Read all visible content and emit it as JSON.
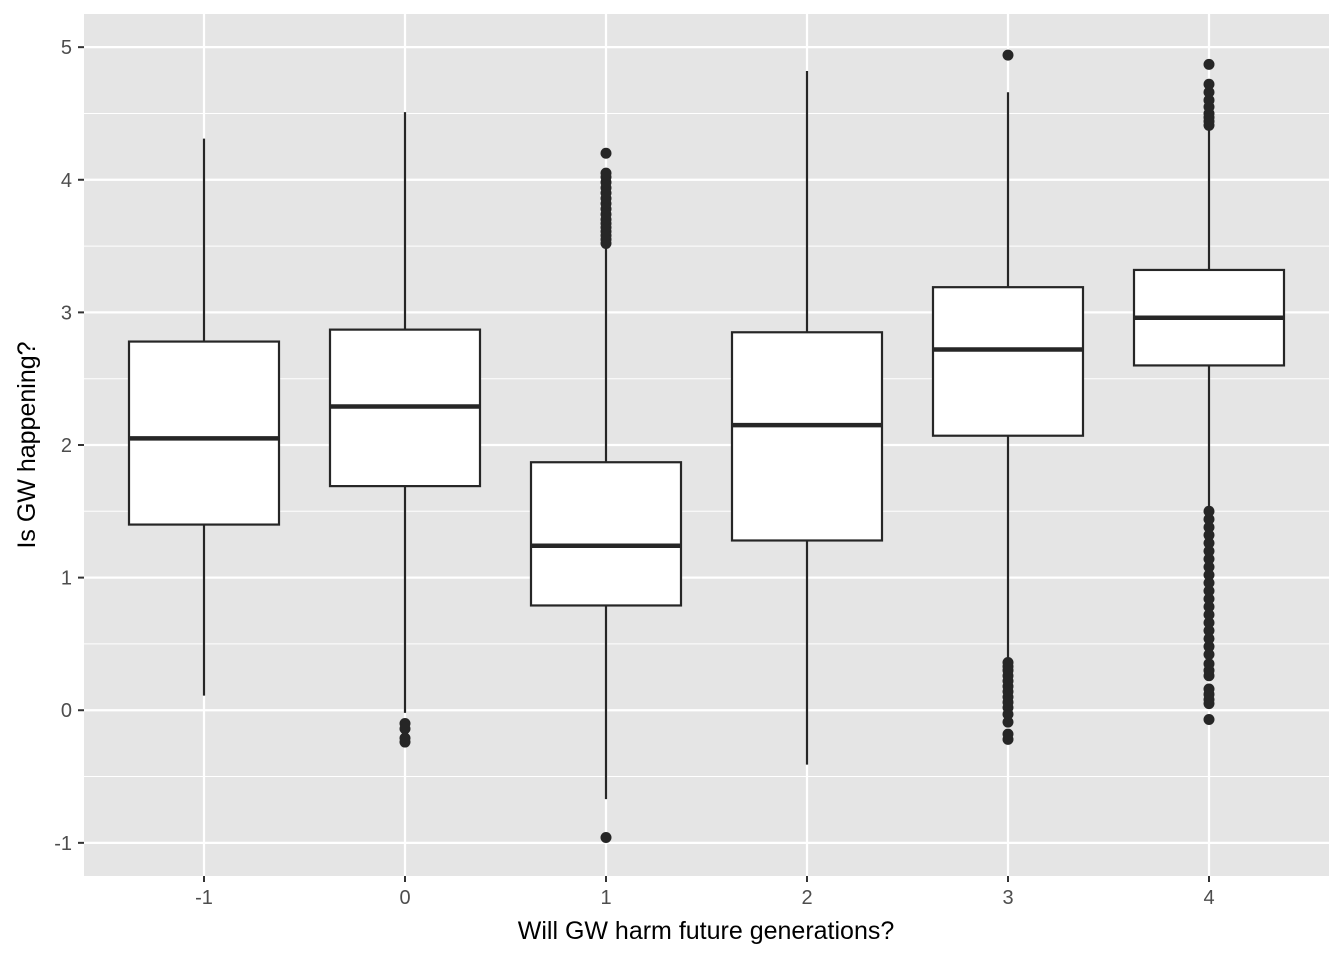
{
  "chart_data": {
    "type": "boxplot",
    "title": "",
    "xlabel": "Will GW harm future generations?",
    "ylabel": "Is GW happening?",
    "categories": [
      "-1",
      "0",
      "1",
      "2",
      "3",
      "4"
    ],
    "y_ticks": [
      -1,
      0,
      1,
      2,
      3,
      4,
      5
    ],
    "ylim": [
      -1.25,
      5.25
    ],
    "grid": true,
    "legend": "none",
    "colors": {
      "panel": "#e5e5e5",
      "grid": "#ffffff",
      "box_fill": "#ffffff",
      "box_stroke": "#262626",
      "outlier": "#262626"
    },
    "boxes": [
      {
        "category": "-1",
        "whisker_low": 0.11,
        "q1": 1.4,
        "median": 2.05,
        "q3": 2.78,
        "whisker_high": 4.31,
        "outliers": []
      },
      {
        "category": "0",
        "whisker_low": -0.02,
        "q1": 1.69,
        "median": 2.29,
        "q3": 2.87,
        "whisker_high": 4.51,
        "outliers": [
          -0.1,
          -0.14,
          -0.21,
          -0.24
        ]
      },
      {
        "category": "1",
        "whisker_low": -0.67,
        "q1": 0.79,
        "median": 1.24,
        "q3": 1.87,
        "whisker_high": 3.49,
        "outliers": [
          -0.96,
          3.52,
          3.55,
          3.58,
          3.61,
          3.64,
          3.67,
          3.7,
          3.74,
          3.78,
          3.82,
          3.86,
          3.9,
          3.94,
          3.98,
          4.02,
          4.05,
          4.2
        ]
      },
      {
        "category": "2",
        "whisker_low": -0.41,
        "q1": 1.28,
        "median": 2.15,
        "q3": 2.85,
        "whisker_high": 4.82,
        "outliers": []
      },
      {
        "category": "3",
        "whisker_low": 0.39,
        "q1": 2.07,
        "median": 2.72,
        "q3": 3.19,
        "whisker_high": 4.66,
        "outliers": [
          -0.22,
          -0.18,
          -0.09,
          -0.03,
          0.02,
          0.06,
          0.1,
          0.14,
          0.18,
          0.22,
          0.26,
          0.3,
          0.33,
          0.36,
          4.94
        ]
      },
      {
        "category": "4",
        "whisker_low": 1.53,
        "q1": 2.6,
        "median": 2.96,
        "q3": 3.32,
        "whisker_high": 4.39,
        "outliers": [
          -0.07,
          0.05,
          0.08,
          0.12,
          0.16,
          0.26,
          0.3,
          0.35,
          0.42,
          0.48,
          0.54,
          0.6,
          0.66,
          0.72,
          0.78,
          0.84,
          0.9,
          0.96,
          1.02,
          1.08,
          1.14,
          1.2,
          1.26,
          1.32,
          1.38,
          1.44,
          1.5,
          4.41,
          4.44,
          4.47,
          4.5,
          4.55,
          4.6,
          4.66,
          4.72,
          4.87
        ]
      }
    ]
  }
}
